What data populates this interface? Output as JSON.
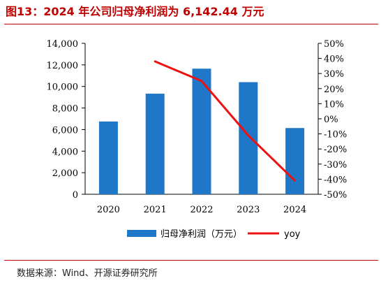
{
  "title": "图13：2024 年公司归母净利润为 6,142.44 万元",
  "source": "数据来源：Wind、开源证券研究所",
  "colors": {
    "bar": "#1f77c8",
    "line": "#ee1111",
    "title": "#c00000"
  },
  "chart_data": {
    "type": "bar",
    "categories": [
      "2020",
      "2021",
      "2022",
      "2023",
      "2024"
    ],
    "series": [
      {
        "name": "归母净利润（万元）",
        "type": "bar",
        "axis": "left",
        "values": [
          6750,
          9330,
          11650,
          10400,
          6142.44
        ]
      },
      {
        "name": "yoy",
        "type": "line",
        "axis": "right",
        "values": [
          null,
          0.38,
          0.25,
          -0.11,
          -0.41
        ]
      }
    ],
    "y_left": {
      "min": 0,
      "max": 14000,
      "ticks": [
        "0",
        "2,000",
        "4,000",
        "6,000",
        "8,000",
        "10,000",
        "12,000",
        "14,000"
      ]
    },
    "y_right": {
      "min": -0.5,
      "max": 0.5,
      "ticks": [
        "50%",
        "40%",
        "30%",
        "20%",
        "10%",
        "0%",
        "-10%",
        "-20%",
        "-30%",
        "-40%",
        "-50%"
      ]
    },
    "grid": false,
    "legend": "bottom"
  }
}
